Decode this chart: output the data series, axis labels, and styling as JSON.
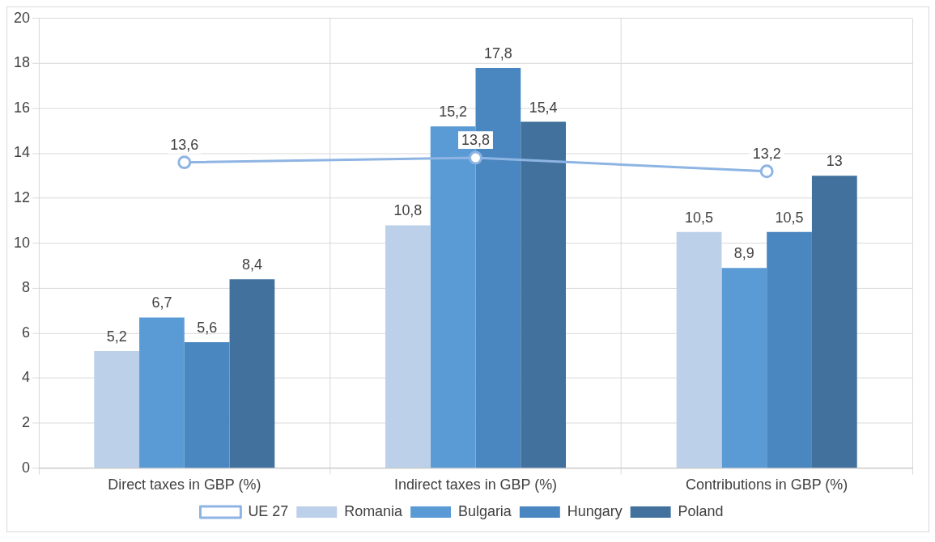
{
  "chart_data": {
    "type": "bar",
    "categories": [
      "Direct taxes in GBP (%)",
      "Indirect taxes in GBP (%)",
      "Contributions in GBP (%)"
    ],
    "series": [
      {
        "name": "Romania",
        "color": "#bdd0e9",
        "values": [
          5.2,
          10.8,
          10.5
        ],
        "value_labels": [
          "5,2",
          "10,8",
          "10,5"
        ]
      },
      {
        "name": "Bulgaria",
        "color": "#5b9bd5",
        "values": [
          6.7,
          15.2,
          8.9
        ],
        "value_labels": [
          "6,7",
          "15,2",
          "8,9"
        ]
      },
      {
        "name": "Hungary",
        "color": "#4a86bf",
        "values": [
          5.6,
          17.8,
          10.5
        ],
        "value_labels": [
          "5,6",
          "17,8",
          "10,5"
        ]
      },
      {
        "name": "Poland",
        "color": "#41719c",
        "values": [
          8.4,
          15.4,
          13
        ],
        "value_labels": [
          "8,4",
          "15,4",
          "13"
        ]
      },
      {
        "name": "UE 27",
        "type": "line",
        "color": "#8eb4e3",
        "marker": "circle",
        "values": [
          13.6,
          13.8,
          13.2
        ],
        "value_labels": [
          "13,6",
          "13,8",
          "13,2"
        ]
      }
    ],
    "ylim": [
      0,
      20
    ],
    "yticks": [
      0,
      2,
      4,
      6,
      8,
      10,
      12,
      14,
      16,
      18,
      20
    ],
    "grid": true,
    "legend": "bottom"
  }
}
